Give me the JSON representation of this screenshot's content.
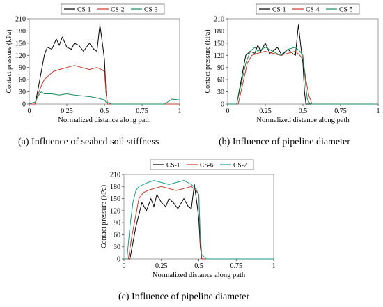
{
  "colors": {
    "CS-1": "#000000",
    "CS-2": "#c0392b",
    "CS-3": "#1a8a5a",
    "CS-4": "#c0392b",
    "CS-5": "#1a8a5a",
    "CS-6": "#c0392b",
    "CS-7": "#1a9a8a"
  },
  "chart_data": [
    {
      "type": "line",
      "title": "",
      "caption": "(a) Influence of seabed soil stiffness",
      "xlabel": "Normalized distance along path",
      "ylabel": "Contact pressure (kPa)",
      "xlim": [
        0,
        1
      ],
      "ylim": [
        0,
        210
      ],
      "xticks": [
        "0",
        "0.25",
        "0.5",
        "0.75",
        "1"
      ],
      "yticks": [
        "0",
        "30",
        "60",
        "90",
        "120",
        "150",
        "180",
        "210"
      ],
      "grid": false,
      "legend_position": "top-center",
      "series": [
        {
          "name": "CS-1",
          "x": [
            0.0,
            0.04,
            0.06,
            0.08,
            0.1,
            0.12,
            0.15,
            0.18,
            0.2,
            0.22,
            0.25,
            0.28,
            0.3,
            0.33,
            0.36,
            0.4,
            0.43,
            0.45,
            0.47,
            0.49,
            0.5,
            0.51,
            0.52,
            0.55,
            1.0
          ],
          "y": [
            0,
            0,
            40,
            80,
            120,
            140,
            135,
            160,
            145,
            165,
            140,
            135,
            150,
            145,
            130,
            150,
            135,
            130,
            195,
            140,
            110,
            30,
            0,
            0,
            0
          ]
        },
        {
          "name": "CS-2",
          "x": [
            0.0,
            0.04,
            0.06,
            0.08,
            0.1,
            0.13,
            0.16,
            0.2,
            0.25,
            0.3,
            0.35,
            0.4,
            0.45,
            0.48,
            0.5,
            0.51,
            0.52,
            0.55,
            1.0
          ],
          "y": [
            0,
            0,
            25,
            45,
            60,
            70,
            80,
            85,
            90,
            95,
            90,
            85,
            90,
            85,
            80,
            30,
            0,
            0,
            0
          ]
        },
        {
          "name": "CS-3",
          "x": [
            0.0,
            0.04,
            0.06,
            0.08,
            0.1,
            0.15,
            0.2,
            0.25,
            0.3,
            0.35,
            0.4,
            0.45,
            0.48,
            0.5,
            0.51,
            0.55,
            0.9,
            0.95,
            1.0
          ],
          "y": [
            0,
            5,
            20,
            30,
            25,
            25,
            22,
            25,
            22,
            20,
            18,
            15,
            12,
            10,
            5,
            0,
            0,
            12,
            10
          ]
        }
      ]
    },
    {
      "type": "line",
      "title": "",
      "caption": "(b) Influence of pipeline diameter",
      "xlabel": "Normalized distance along path",
      "ylabel": "Contact pressure (kPa)",
      "xlim": [
        0,
        1
      ],
      "ylim": [
        0,
        210
      ],
      "xticks": [
        "0",
        "0.25",
        "0.5",
        "0.75",
        "1"
      ],
      "yticks": [
        "0",
        "30",
        "60",
        "90",
        "120",
        "150",
        "180",
        "210"
      ],
      "grid": false,
      "legend_position": "top-center",
      "series": [
        {
          "name": "CS-1",
          "x": [
            0.0,
            0.06,
            0.08,
            0.1,
            0.12,
            0.15,
            0.18,
            0.2,
            0.22,
            0.25,
            0.28,
            0.3,
            0.33,
            0.36,
            0.4,
            0.43,
            0.45,
            0.47,
            0.49,
            0.5,
            0.51,
            0.52,
            0.55,
            1.0
          ],
          "y": [
            0,
            0,
            40,
            80,
            120,
            130,
            125,
            145,
            130,
            150,
            125,
            130,
            140,
            120,
            135,
            125,
            120,
            195,
            130,
            100,
            30,
            0,
            0,
            0
          ]
        },
        {
          "name": "CS-4",
          "x": [
            0.0,
            0.07,
            0.1,
            0.13,
            0.16,
            0.2,
            0.25,
            0.3,
            0.35,
            0.4,
            0.45,
            0.48,
            0.5,
            0.52,
            0.54,
            0.56,
            1.0
          ],
          "y": [
            0,
            0,
            50,
            100,
            120,
            125,
            130,
            125,
            120,
            125,
            130,
            120,
            110,
            60,
            20,
            0,
            0
          ]
        },
        {
          "name": "CS-5",
          "x": [
            0.0,
            0.06,
            0.09,
            0.12,
            0.15,
            0.18,
            0.2,
            0.25,
            0.3,
            0.35,
            0.4,
            0.45,
            0.48,
            0.5,
            0.52,
            0.53,
            0.55,
            1.0
          ],
          "y": [
            0,
            0,
            50,
            100,
            130,
            140,
            130,
            140,
            130,
            120,
            135,
            140,
            130,
            120,
            40,
            10,
            0,
            0
          ]
        }
      ]
    },
    {
      "type": "line",
      "title": "",
      "caption": "(c) Influence of pipeline diameter",
      "xlabel": "Normalized distance along path",
      "ylabel": "Contact pressure (kPa)",
      "xlim": [
        0,
        1
      ],
      "ylim": [
        0,
        210
      ],
      "xticks": [
        "0",
        "0.25",
        "0.5",
        "0.75",
        "1"
      ],
      "yticks": [
        "0",
        "30",
        "60",
        "90",
        "120",
        "150",
        "180",
        "210"
      ],
      "grid": false,
      "legend_position": "top-center",
      "series": [
        {
          "name": "CS-1",
          "x": [
            0.0,
            0.04,
            0.06,
            0.08,
            0.1,
            0.12,
            0.15,
            0.18,
            0.2,
            0.22,
            0.25,
            0.28,
            0.3,
            0.33,
            0.36,
            0.4,
            0.43,
            0.45,
            0.47,
            0.49,
            0.5,
            0.51,
            0.52,
            0.55,
            1.0
          ],
          "y": [
            0,
            0,
            40,
            80,
            110,
            140,
            120,
            150,
            130,
            160,
            140,
            130,
            150,
            140,
            125,
            150,
            130,
            125,
            185,
            130,
            100,
            30,
            0,
            0,
            0
          ]
        },
        {
          "name": "CS-6",
          "x": [
            0.0,
            0.03,
            0.05,
            0.08,
            0.1,
            0.13,
            0.16,
            0.2,
            0.25,
            0.3,
            0.35,
            0.4,
            0.45,
            0.48,
            0.5,
            0.51,
            0.52,
            0.55,
            1.0
          ],
          "y": [
            0,
            0,
            50,
            110,
            150,
            165,
            170,
            175,
            180,
            175,
            170,
            175,
            180,
            170,
            160,
            40,
            0,
            0,
            0
          ]
        },
        {
          "name": "CS-7",
          "x": [
            0.0,
            0.02,
            0.04,
            0.06,
            0.08,
            0.1,
            0.13,
            0.16,
            0.2,
            0.25,
            0.3,
            0.35,
            0.4,
            0.45,
            0.48,
            0.5,
            0.51,
            0.52,
            0.55,
            1.0
          ],
          "y": [
            0,
            0,
            80,
            140,
            170,
            180,
            185,
            190,
            195,
            190,
            185,
            190,
            195,
            185,
            175,
            160,
            60,
            10,
            0,
            0
          ]
        }
      ]
    }
  ]
}
